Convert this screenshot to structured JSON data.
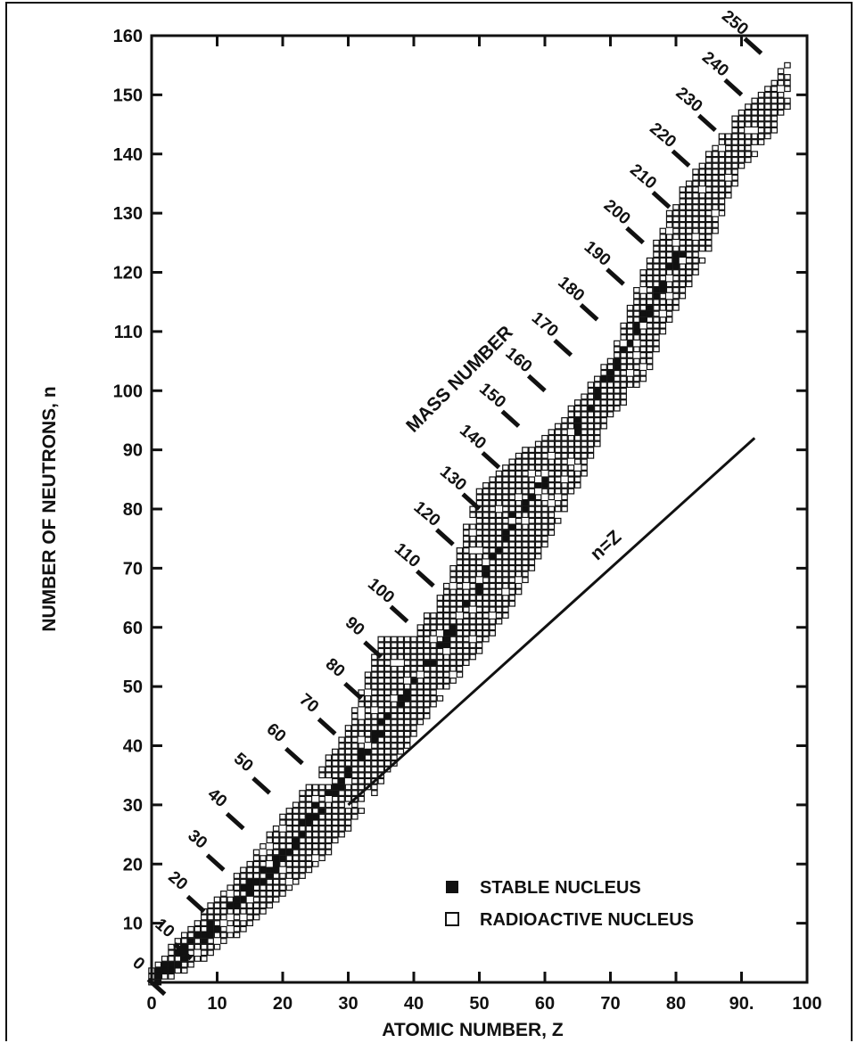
{
  "chart_data": {
    "type": "scatter",
    "title": "",
    "xlabel": "ATOMIC NUMBER, Z",
    "ylabel": "NUMBER OF NEUTRONS, n",
    "xlim": [
      0,
      100
    ],
    "ylim": [
      0,
      160
    ],
    "x_ticks": [
      "0",
      "10",
      "20",
      "30",
      "40",
      "50",
      "60",
      "70",
      "80",
      "90.",
      "100"
    ],
    "y_ticks": [
      "10",
      "20",
      "30",
      "40",
      "50",
      "60",
      "70",
      "80",
      "90",
      "100",
      "110",
      "120",
      "130",
      "140",
      "150",
      "160"
    ],
    "legend": [
      {
        "name": "STABLE NUCLEUS",
        "marker": "filled-square"
      },
      {
        "name": "RADIOACTIVE NUCLEUS",
        "marker": "open-square"
      }
    ],
    "legend_position": "bottom-right",
    "reference_line": {
      "label": "n=Z",
      "x": [
        30,
        92
      ],
      "y": [
        30,
        92
      ]
    },
    "mass_number_title": "MASS NUMBER",
    "mass_number_labels": [
      "0",
      "10",
      "20",
      "30",
      "40",
      "50",
      "60",
      "70",
      "80",
      "90",
      "100",
      "110",
      "120",
      "130",
      "140",
      "150",
      "160",
      "170",
      "180",
      "190",
      "200",
      "210",
      "220",
      "230",
      "240",
      "250"
    ],
    "band_stable_center": [
      {
        "z": 1,
        "n": 1
      },
      {
        "z": 5,
        "n": 5
      },
      {
        "z": 10,
        "n": 10
      },
      {
        "z": 15,
        "n": 16
      },
      {
        "z": 20,
        "n": 21
      },
      {
        "z": 25,
        "n": 29
      },
      {
        "z": 30,
        "n": 35
      },
      {
        "z": 35,
        "n": 43
      },
      {
        "z": 40,
        "n": 50
      },
      {
        "z": 45,
        "n": 58
      },
      {
        "z": 50,
        "n": 67
      },
      {
        "z": 55,
        "n": 78
      },
      {
        "z": 60,
        "n": 85
      },
      {
        "z": 65,
        "n": 94
      },
      {
        "z": 70,
        "n": 103
      },
      {
        "z": 75,
        "n": 112
      },
      {
        "z": 80,
        "n": 122
      },
      {
        "z": 83,
        "n": 126
      }
    ],
    "band_radioactive_extent": [
      {
        "z": 0,
        "n_min": 0,
        "n_max": 2
      },
      {
        "z": 5,
        "n_min": 2,
        "n_max": 8
      },
      {
        "z": 10,
        "n_min": 6,
        "n_max": 14
      },
      {
        "z": 15,
        "n_min": 10,
        "n_max": 20
      },
      {
        "z": 20,
        "n_min": 15,
        "n_max": 28
      },
      {
        "z": 25,
        "n_min": 20,
        "n_max": 34
      },
      {
        "z": 30,
        "n_min": 26,
        "n_max": 43
      },
      {
        "z": 35,
        "n_min": 34,
        "n_max": 58
      },
      {
        "z": 40,
        "n_min": 42,
        "n_max": 58
      },
      {
        "z": 45,
        "n_min": 50,
        "n_max": 67
      },
      {
        "z": 50,
        "n_min": 56,
        "n_max": 83
      },
      {
        "z": 55,
        "n_min": 64,
        "n_max": 88
      },
      {
        "z": 60,
        "n_min": 74,
        "n_max": 92
      },
      {
        "z": 65,
        "n_min": 84,
        "n_max": 98
      },
      {
        "z": 70,
        "n_min": 96,
        "n_max": 105
      },
      {
        "z": 75,
        "n_min": 102,
        "n_max": 120
      },
      {
        "z": 80,
        "n_min": 114,
        "n_max": 132
      },
      {
        "z": 85,
        "n_min": 124,
        "n_max": 140
      },
      {
        "z": 90,
        "n_min": 138,
        "n_max": 147
      },
      {
        "z": 95,
        "n_min": 144,
        "n_max": 152
      },
      {
        "z": 97,
        "n_min": 148,
        "n_max": 155
      }
    ]
  }
}
